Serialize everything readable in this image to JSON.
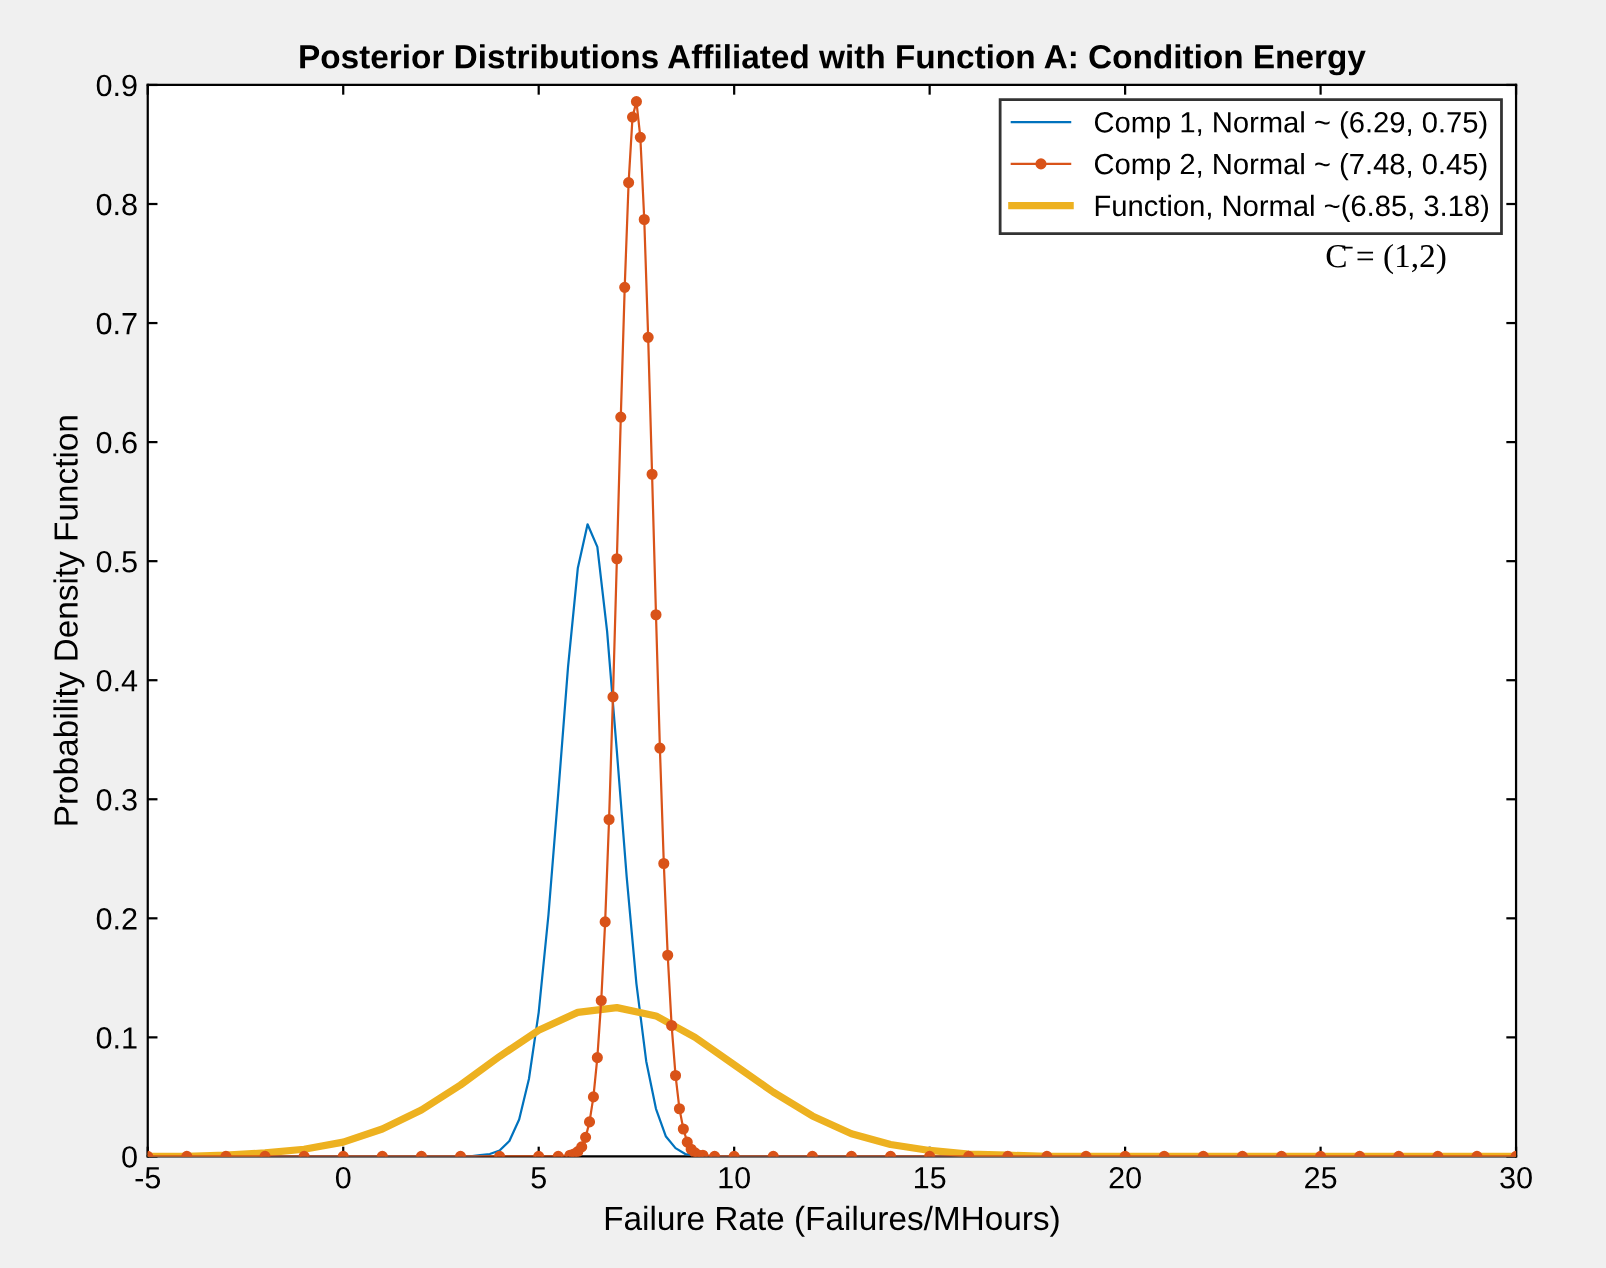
{
  "chart_data": {
    "type": "line",
    "title": "Posterior Distributions Affiliated with Function A: Condition Energy",
    "xlabel": "Failure Rate (Failures/MHours)",
    "ylabel": "Probability Density Function",
    "xlim": [
      -5,
      30
    ],
    "ylim": [
      0,
      0.9
    ],
    "xticks": [
      -5,
      0,
      5,
      10,
      15,
      20,
      25,
      30
    ],
    "yticks": [
      0,
      0.1,
      0.2,
      0.3,
      0.4,
      0.5,
      0.6,
      0.7,
      0.8,
      0.9
    ],
    "grid": false,
    "legend": "top right",
    "annotations": [
      "C̄ = (1,2)"
    ],
    "series": [
      {
        "name": "Comp 1, Normal ~ (6.29, 0.75)",
        "color": "#0072bd",
        "marker": "none",
        "x": [
          -5,
          3.25,
          3.5,
          3.75,
          4.0,
          4.25,
          4.5,
          4.75,
          5.0,
          5.25,
          5.5,
          5.75,
          6.0,
          6.25,
          6.5,
          6.75,
          7.0,
          7.25,
          7.5,
          7.75,
          8.0,
          8.25,
          8.5,
          8.75,
          9.0,
          9.25,
          30
        ],
        "values": [
          0,
          0,
          0.001,
          0.002,
          0.005,
          0.013,
          0.031,
          0.065,
          0.121,
          0.203,
          0.305,
          0.411,
          0.494,
          0.531,
          0.512,
          0.441,
          0.34,
          0.235,
          0.145,
          0.08,
          0.04,
          0.017,
          0.007,
          0.002,
          0.001,
          0,
          0
        ]
      },
      {
        "name": "Comp 2, Normal ~ (7.48, 0.45)",
        "color": "#d95319",
        "marker": "circle",
        "x": [
          -5,
          -4,
          -3,
          -2,
          -1,
          0,
          1,
          2,
          3,
          4,
          5,
          5.5,
          5.8,
          5.9,
          6.0,
          6.1,
          6.2,
          6.3,
          6.4,
          6.5,
          6.6,
          6.7,
          6.8,
          6.9,
          7.0,
          7.1,
          7.2,
          7.3,
          7.4,
          7.5,
          7.6,
          7.7,
          7.8,
          7.9,
          8.0,
          8.1,
          8.2,
          8.3,
          8.4,
          8.5,
          8.6,
          8.7,
          8.8,
          8.9,
          9.0,
          9.1,
          9.2,
          9.5,
          10,
          11,
          12,
          13,
          14,
          15,
          16,
          17,
          18,
          19,
          20,
          21,
          22,
          23,
          24,
          25,
          26,
          27,
          28,
          29,
          30
        ],
        "values": [
          0,
          0,
          0,
          0,
          0,
          0,
          0,
          0,
          0,
          0,
          0,
          0,
          0.001,
          0.002,
          0.004,
          0.008,
          0.016,
          0.029,
          0.05,
          0.083,
          0.131,
          0.197,
          0.283,
          0.386,
          0.502,
          0.621,
          0.73,
          0.818,
          0.873,
          0.886,
          0.856,
          0.787,
          0.688,
          0.573,
          0.455,
          0.343,
          0.246,
          0.169,
          0.11,
          0.068,
          0.04,
          0.023,
          0.012,
          0.006,
          0.003,
          0.001,
          0.001,
          0,
          0,
          0,
          0,
          0,
          0,
          0,
          0,
          0,
          0,
          0,
          0,
          0,
          0,
          0,
          0,
          0,
          0,
          0,
          0,
          0,
          0
        ]
      },
      {
        "name": "Function, Normal ~(6.85, 3.18)",
        "color": "#edb120",
        "marker": "none",
        "x": [
          -5,
          -4,
          -3,
          -2,
          -1,
          0,
          1,
          2,
          3,
          4,
          5,
          6,
          7,
          8,
          9,
          10,
          11,
          12,
          13,
          14,
          15,
          16,
          17,
          18,
          19,
          20,
          30
        ],
        "values": [
          0,
          0,
          0.001,
          0.003,
          0.006,
          0.012,
          0.023,
          0.039,
          0.06,
          0.084,
          0.106,
          0.121,
          0.125,
          0.118,
          0.1,
          0.077,
          0.054,
          0.034,
          0.019,
          0.01,
          0.005,
          0.002,
          0.001,
          0,
          0,
          0,
          0
        ]
      }
    ]
  }
}
